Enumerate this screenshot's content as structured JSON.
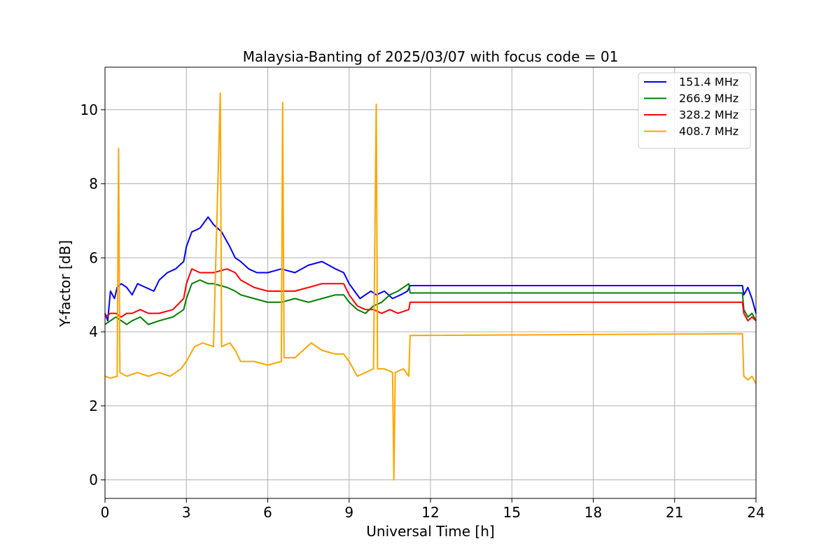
{
  "chart_data": {
    "type": "line",
    "title": "Malaysia-Banting of 2025/03/07 with focus code = 01",
    "xlabel": "Universal Time [h]",
    "ylabel": "Y-factor [dB]",
    "xlim": [
      0,
      24
    ],
    "ylim": [
      -0.5,
      11.15
    ],
    "xticks": [
      0,
      3,
      6,
      9,
      12,
      15,
      18,
      21,
      24
    ],
    "yticks": [
      0,
      2,
      4,
      6,
      8,
      10
    ],
    "grid": true,
    "legend_position": "top-right",
    "series": [
      {
        "name": "151.4 MHz",
        "color": "#0000ff",
        "x": [
          0,
          0.1,
          0.2,
          0.35,
          0.45,
          0.6,
          0.8,
          1.0,
          1.2,
          1.5,
          1.8,
          2.0,
          2.3,
          2.6,
          2.9,
          3.0,
          3.2,
          3.5,
          3.8,
          4.0,
          4.3,
          4.6,
          4.8,
          5.0,
          5.3,
          5.6,
          6.0,
          6.5,
          7.0,
          7.5,
          8.0,
          8.5,
          8.8,
          9.0,
          9.2,
          9.4,
          9.6,
          9.8,
          10.0,
          10.3,
          10.6,
          10.9,
          11.15,
          11.25,
          23.5,
          23.55,
          23.7,
          23.85,
          24.0
        ],
        "y": [
          4.5,
          4.3,
          5.1,
          4.9,
          5.2,
          5.3,
          5.2,
          5.0,
          5.3,
          5.2,
          5.1,
          5.4,
          5.6,
          5.7,
          5.9,
          6.3,
          6.7,
          6.8,
          7.1,
          6.9,
          6.7,
          6.3,
          6.0,
          5.9,
          5.7,
          5.6,
          5.6,
          5.7,
          5.6,
          5.8,
          5.9,
          5.7,
          5.6,
          5.3,
          5.1,
          4.9,
          5.0,
          5.1,
          5.0,
          5.1,
          4.9,
          5.0,
          5.1,
          5.25,
          5.25,
          5.0,
          5.2,
          4.9,
          4.5
        ]
      },
      {
        "name": "266.9 MHz",
        "color": "#008000",
        "x": [
          0,
          0.2,
          0.4,
          0.6,
          0.8,
          1.0,
          1.3,
          1.6,
          2.0,
          2.5,
          2.9,
          3.0,
          3.2,
          3.5,
          3.8,
          4.0,
          4.5,
          4.8,
          5.0,
          5.5,
          6.0,
          6.5,
          7.0,
          7.5,
          8.0,
          8.5,
          8.8,
          9.0,
          9.3,
          9.6,
          9.9,
          10.2,
          10.5,
          10.8,
          11.2,
          11.25,
          23.5,
          23.55,
          23.7,
          23.85,
          24.0
        ],
        "y": [
          4.2,
          4.3,
          4.4,
          4.3,
          4.2,
          4.3,
          4.4,
          4.2,
          4.3,
          4.4,
          4.6,
          4.9,
          5.3,
          5.4,
          5.3,
          5.3,
          5.2,
          5.1,
          5.0,
          4.9,
          4.8,
          4.8,
          4.9,
          4.8,
          4.9,
          5.0,
          5.0,
          4.8,
          4.6,
          4.5,
          4.7,
          4.8,
          5.0,
          5.1,
          5.3,
          5.05,
          5.05,
          4.6,
          4.4,
          4.5,
          4.3
        ]
      },
      {
        "name": "328.2 MHz",
        "color": "#ff0000",
        "x": [
          0,
          0.2,
          0.4,
          0.6,
          0.8,
          1.0,
          1.3,
          1.6,
          2.0,
          2.5,
          2.9,
          3.0,
          3.2,
          3.5,
          3.8,
          4.0,
          4.5,
          4.8,
          5.0,
          5.5,
          6.0,
          6.5,
          7.0,
          7.5,
          8.0,
          8.5,
          8.8,
          9.0,
          9.3,
          9.6,
          9.9,
          10.2,
          10.5,
          10.8,
          11.2,
          11.25,
          23.5,
          23.55,
          23.7,
          23.85,
          24.0
        ],
        "y": [
          4.4,
          4.5,
          4.5,
          4.4,
          4.5,
          4.5,
          4.6,
          4.5,
          4.5,
          4.6,
          4.9,
          5.3,
          5.7,
          5.6,
          5.6,
          5.6,
          5.7,
          5.6,
          5.4,
          5.2,
          5.1,
          5.1,
          5.1,
          5.2,
          5.3,
          5.3,
          5.3,
          5.0,
          4.7,
          4.6,
          4.6,
          4.5,
          4.6,
          4.5,
          4.6,
          4.8,
          4.8,
          4.5,
          4.3,
          4.4,
          4.3
        ]
      },
      {
        "name": "408.7 MHz",
        "color": "#ffa500",
        "x": [
          0,
          0.2,
          0.45,
          0.5,
          0.55,
          0.8,
          1.2,
          1.6,
          2.0,
          2.4,
          2.8,
          3.0,
          3.3,
          3.6,
          4.0,
          4.25,
          4.3,
          4.6,
          4.8,
          5.0,
          5.5,
          6.0,
          6.5,
          6.55,
          6.6,
          7.0,
          7.3,
          7.6,
          8.0,
          8.5,
          8.8,
          9.0,
          9.3,
          9.6,
          9.9,
          10.0,
          10.05,
          10.3,
          10.6,
          10.65,
          10.7,
          11.0,
          11.2,
          11.25,
          23.5,
          23.55,
          23.7,
          23.85,
          24.0
        ],
        "y": [
          2.8,
          2.75,
          2.8,
          8.95,
          2.9,
          2.8,
          2.9,
          2.8,
          2.9,
          2.8,
          3.0,
          3.2,
          3.6,
          3.7,
          3.6,
          10.45,
          3.6,
          3.7,
          3.5,
          3.2,
          3.2,
          3.1,
          3.2,
          10.2,
          3.3,
          3.3,
          3.5,
          3.7,
          3.5,
          3.4,
          3.4,
          3.2,
          2.8,
          2.9,
          3.0,
          10.15,
          3.0,
          3.0,
          2.9,
          0.0,
          2.9,
          3.0,
          2.8,
          3.9,
          3.95,
          2.8,
          2.7,
          2.8,
          2.6
        ]
      }
    ]
  }
}
